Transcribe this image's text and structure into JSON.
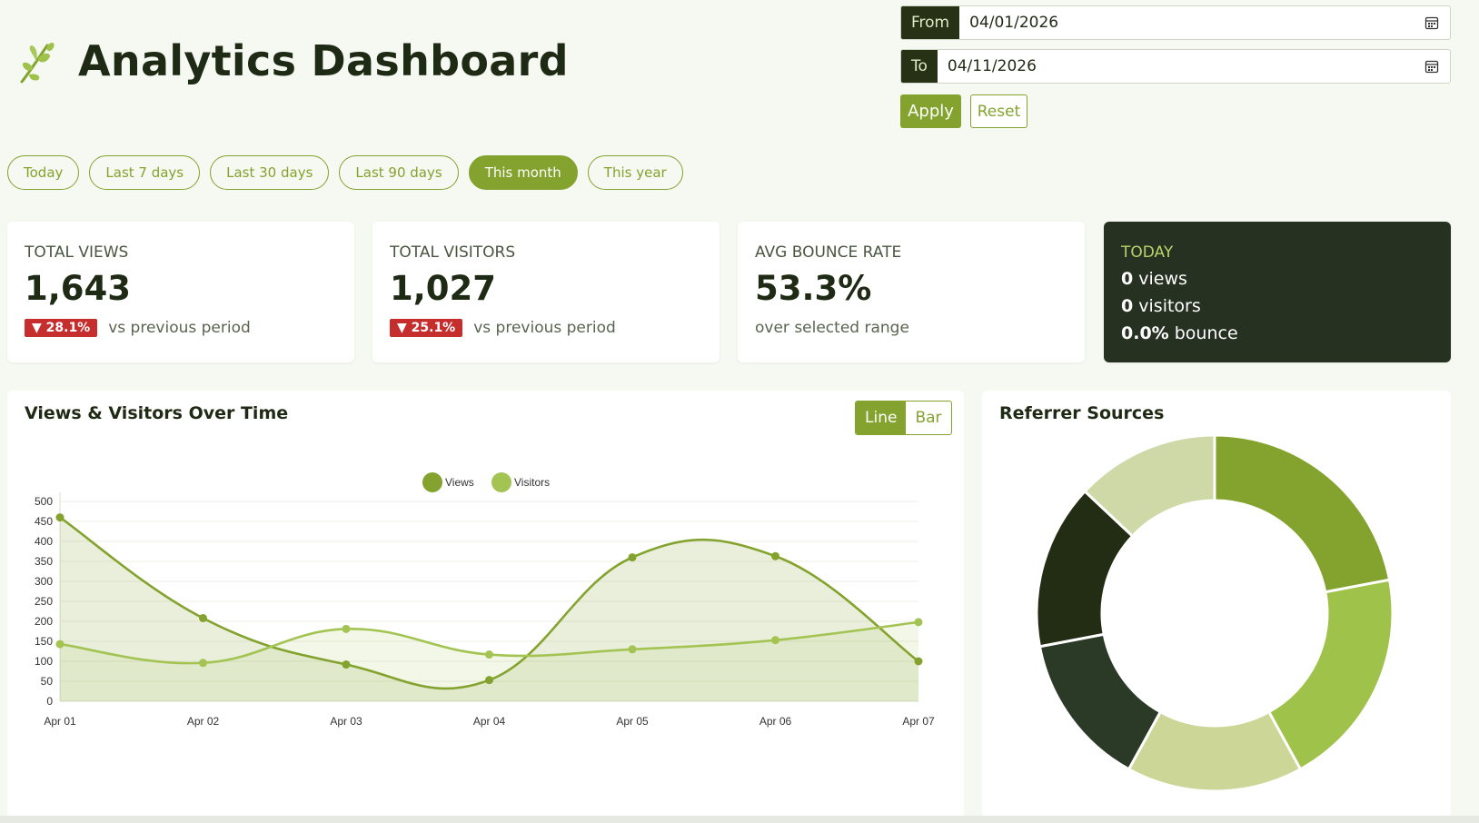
{
  "header": {
    "title": "Analytics Dashboard",
    "logo_icon": "leaf-sprig-icon"
  },
  "date_range": {
    "from_label": "From",
    "from_value": "04/01/2026",
    "to_label": "To",
    "to_value": "04/11/2026",
    "apply_label": "Apply",
    "reset_label": "Reset"
  },
  "quick_ranges": [
    "Today",
    "Last 7 days",
    "Last 30 days",
    "Last 90 days",
    "This month",
    "This year"
  ],
  "active_range": "This month",
  "stats": {
    "total_views": {
      "label": "TOTAL VIEWS",
      "value": "1,643",
      "delta": "▼ 28.1%",
      "delta_text": "vs previous period"
    },
    "total_visitors": {
      "label": "TOTAL VISITORS",
      "value": "1,027",
      "delta": "▼ 25.1%",
      "delta_text": "vs previous period"
    },
    "avg_bounce": {
      "label": "AVG BOUNCE RATE",
      "value": "53.3%",
      "sub": "over selected range"
    },
    "today": {
      "label": "TODAY",
      "views_num": "0",
      "views_unit": "views",
      "visitors_num": "0",
      "visitors_unit": "visitors",
      "bounce_num": "0.0%",
      "bounce_unit": "bounce"
    }
  },
  "timeseries_panel": {
    "title": "Views & Visitors Over Time",
    "toggle_line": "Line",
    "toggle_bar": "Bar"
  },
  "referrer_panel": {
    "title": "Referrer Sources"
  },
  "colors": {
    "accent": "#84a32e",
    "dark": "#263122",
    "light_green": "#9fc24a",
    "pale_green": "#cbd697",
    "danger": "#c62e2e"
  },
  "chart_data": [
    {
      "type": "line",
      "categories": [
        "Apr 01",
        "Apr 02",
        "Apr 03",
        "Apr 04",
        "Apr 05",
        "Apr 06",
        "Apr 07"
      ],
      "series": [
        {
          "name": "Views",
          "values": [
            460,
            208,
            92,
            53,
            360,
            363,
            100
          ],
          "color": "#84a32e",
          "fill": true
        },
        {
          "name": "Visitors",
          "values": [
            143,
            96,
            181,
            117,
            130,
            153,
            198
          ],
          "color": "#a3c452",
          "fill": true
        }
      ],
      "ylim": [
        0,
        500
      ],
      "yticks": [
        0,
        50,
        100,
        150,
        200,
        250,
        300,
        350,
        400,
        450,
        500
      ],
      "legend": "top-center",
      "grid": true
    },
    {
      "type": "pie",
      "donut": true,
      "values": [
        22,
        20,
        16,
        14,
        15,
        13
      ],
      "colors": [
        "#84a32e",
        "#9fc24a",
        "#cbd697",
        "#2b3a26",
        "#232d13",
        "#cfd9a8"
      ]
    }
  ]
}
